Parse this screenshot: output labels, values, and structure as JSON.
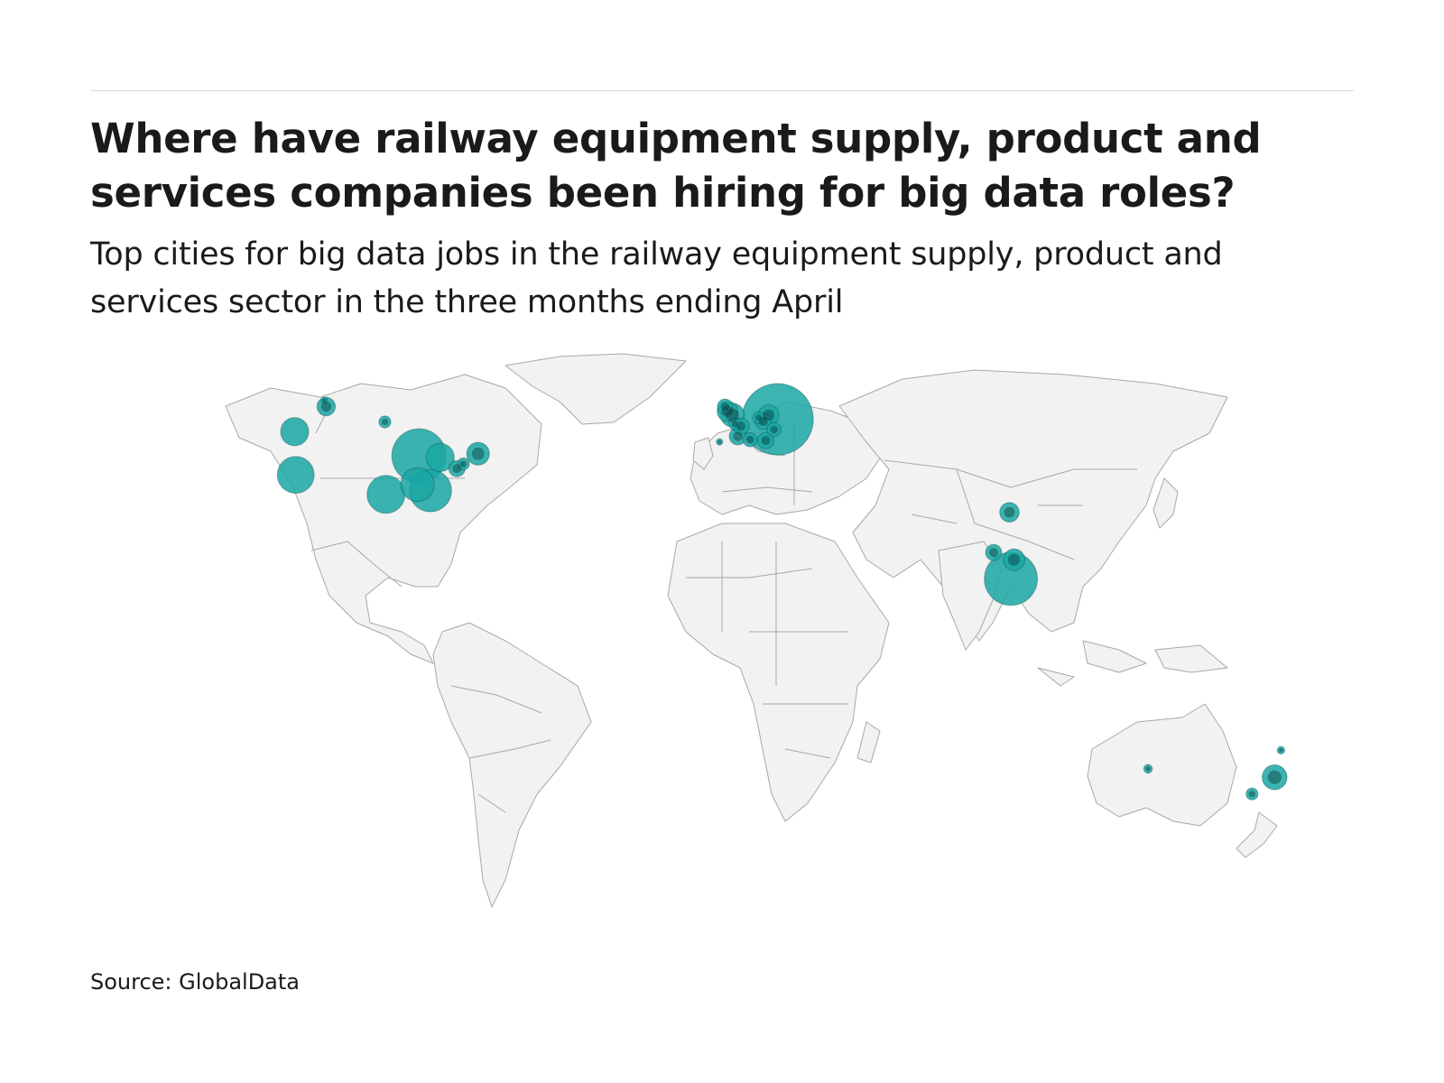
{
  "header": {
    "title": "Where have railway equipment supply, product and services companies been hiring for big data roles?",
    "subtitle": "Top cities for big data jobs in the railway equipment supply, product and services sector in the three months ending April"
  },
  "footer": {
    "source": "Source: GlobalData"
  },
  "map": {
    "projection": "world map",
    "land_color": "#f2f2f2",
    "border_color": "#a8a8a8",
    "bubble_color": "#1aa7a3",
    "bubble_outline_color": "#0b3a3c",
    "bubbles": [
      {
        "region": "North America",
        "lon": -87.6,
        "lat": 41.9,
        "relative_size": 1.0
      },
      {
        "region": "North America",
        "lon": -84.4,
        "lat": 33.7,
        "relative_size": 0.78
      },
      {
        "region": "North America",
        "lon": -88.0,
        "lat": 35.1,
        "relative_size": 0.62
      },
      {
        "region": "North America",
        "lon": -96.8,
        "lat": 32.8,
        "relative_size": 0.7
      },
      {
        "region": "North America",
        "lon": -81.7,
        "lat": 41.5,
        "relative_size": 0.52
      },
      {
        "region": "North America",
        "lon": -77.0,
        "lat": 38.9,
        "relative_size": 0.3
      },
      {
        "region": "North America",
        "lon": -75.2,
        "lat": 40.0,
        "relative_size": 0.22
      },
      {
        "region": "North America",
        "lon": -71.1,
        "lat": 42.4,
        "relative_size": 0.42
      },
      {
        "region": "North America",
        "lon": -122.3,
        "lat": 47.6,
        "relative_size": 0.52
      },
      {
        "region": "North America",
        "lon": -122.0,
        "lat": 37.4,
        "relative_size": 0.68
      },
      {
        "region": "North America",
        "lon": -113.5,
        "lat": 53.5,
        "relative_size": 0.34
      },
      {
        "region": "North America",
        "lon": -114.0,
        "lat": 55.0,
        "relative_size": 0.12
      },
      {
        "region": "North America",
        "lon": -97.1,
        "lat": 49.9,
        "relative_size": 0.22
      },
      {
        "region": "Europe",
        "lon": 12.5,
        "lat": 50.5,
        "relative_size": 1.32
      },
      {
        "region": "Europe",
        "lon": 10.0,
        "lat": 51.5,
        "relative_size": 0.38
      },
      {
        "region": "Europe",
        "lon": 8.5,
        "lat": 50.0,
        "relative_size": 0.3
      },
      {
        "region": "Europe",
        "lon": 11.5,
        "lat": 48.1,
        "relative_size": 0.26
      },
      {
        "region": "Europe",
        "lon": 7.2,
        "lat": 50.9,
        "relative_size": 0.22
      },
      {
        "region": "Europe",
        "lon": -2.2,
        "lat": 53.5,
        "relative_size": 0.28
      },
      {
        "region": "Europe",
        "lon": -1.5,
        "lat": 52.4,
        "relative_size": 0.38
      },
      {
        "region": "Europe",
        "lon": -0.1,
        "lat": 51.5,
        "relative_size": 0.44
      },
      {
        "region": "Europe",
        "lon": 0.6,
        "lat": 49.4,
        "relative_size": 0.22
      },
      {
        "region": "Europe",
        "lon": 2.3,
        "lat": 48.9,
        "relative_size": 0.3
      },
      {
        "region": "Europe",
        "lon": 1.4,
        "lat": 46.5,
        "relative_size": 0.32
      },
      {
        "region": "Europe",
        "lon": 4.8,
        "lat": 45.7,
        "relative_size": 0.26
      },
      {
        "region": "Europe",
        "lon": 9.2,
        "lat": 45.5,
        "relative_size": 0.3
      },
      {
        "region": "Europe",
        "lon": -3.7,
        "lat": 45.2,
        "relative_size": 0.12
      },
      {
        "region": "Asia",
        "lon": 77.2,
        "lat": 28.6,
        "relative_size": 0.36
      },
      {
        "region": "Asia",
        "lon": 72.8,
        "lat": 19.1,
        "relative_size": 0.3
      },
      {
        "region": "Asia",
        "lon": 78.5,
        "lat": 17.4,
        "relative_size": 0.4
      },
      {
        "region": "Asia",
        "lon": 77.6,
        "lat": 12.9,
        "relative_size": 0.98
      },
      {
        "region": "Oceania",
        "lon": 115.9,
        "lat": -31.9,
        "relative_size": 0.16
      },
      {
        "region": "Oceania",
        "lon": 151.2,
        "lat": -33.9,
        "relative_size": 0.46
      },
      {
        "region": "Oceania",
        "lon": 144.9,
        "lat": -37.8,
        "relative_size": 0.22
      },
      {
        "region": "Oceania",
        "lon": 153.0,
        "lat": -27.5,
        "relative_size": 0.14
      }
    ]
  }
}
